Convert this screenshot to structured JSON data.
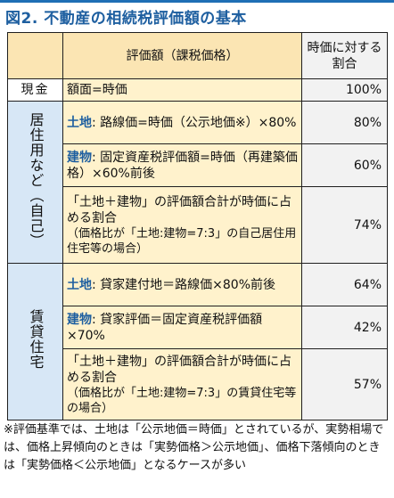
{
  "title": "図2. 不動産の相続税評価額の基本",
  "header": {
    "main": "評価額（課税価格）",
    "side": "時価に対する割合"
  },
  "cash_row": {
    "category": "現金",
    "description": "額面=時価",
    "ratio": "100%"
  },
  "home_section": {
    "category": "居住用など（自己）",
    "rows": [
      {
        "label": "土地",
        "text": ": 路線価=時価（公示地価※）×80%",
        "note": "",
        "ratio": "80%"
      },
      {
        "label": "建物",
        "text": ": 固定資産税評価額=時価（再建築価格）×60%前後",
        "note": "",
        "ratio": "60%"
      },
      {
        "label": "",
        "text": "「土地＋建物」の評価額合計が時価に占める割合",
        "note": "（価格比が「土地:建物=7:3」の自己居住用住宅等の場合）",
        "ratio": "74%"
      }
    ]
  },
  "rent_section": {
    "category": "賃貸住宅",
    "rows": [
      {
        "label": "土地",
        "text": ": 貸家建付地＝路線価×80%前後",
        "note": "",
        "ratio": "64%"
      },
      {
        "label": "建物",
        "text": ": 貸家評価＝固定資産税評価額×70%",
        "note": "",
        "ratio": "42%"
      },
      {
        "label": "",
        "text": "「土地＋建物」の評価額合計が時価に占める割合",
        "note": "（価格比が「土地:建物=7:3」の賃貸住宅等の場合）",
        "ratio": "57%"
      }
    ]
  },
  "footnote": "※評価基準では、土地は「公示地価＝時価」とされているが、実勢相場では、価格上昇傾向のときは「実勢価格＞公示地価」、価格下落傾向のときは「実勢価格＜公示地価」となるケースが多い",
  "colors": {
    "title_text": "#1e5fa0",
    "header_fill": "#fbe5b3",
    "description_fill": "#fff2cc",
    "category_fill": "#d7e7f6",
    "ratio_fill": "#f2f2f2"
  }
}
